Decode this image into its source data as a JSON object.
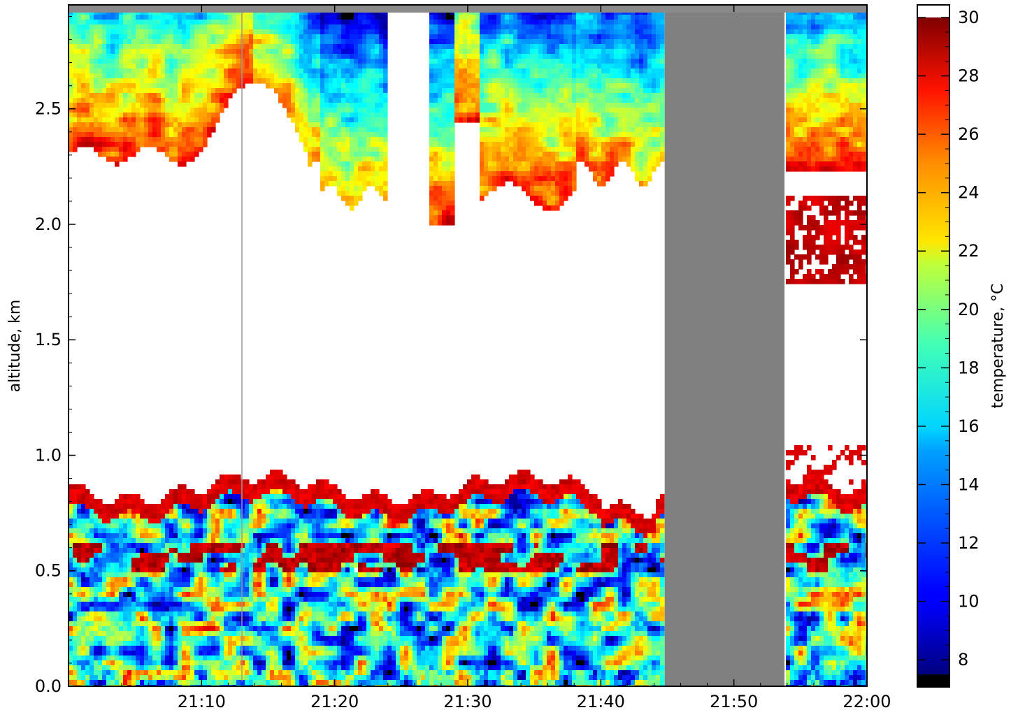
{
  "chart_data": {
    "type": "heatmap",
    "title": "",
    "xlabel": "",
    "ylabel": "altitude, km",
    "x_ticks": [
      "21:10",
      "21:20",
      "21:30",
      "21:40",
      "21:50",
      "22:00"
    ],
    "x_tick_minutes": [
      10,
      20,
      30,
      40,
      50,
      60
    ],
    "xlim_minutes_after_21_00": [
      0,
      60
    ],
    "y_ticks": [
      0.0,
      0.5,
      1.0,
      1.5,
      2.0,
      2.5
    ],
    "y_tick_labels": [
      "0.0",
      "0.5",
      "1.0",
      "1.5",
      "2.0",
      "2.5"
    ],
    "ylim": [
      0.0,
      2.95
    ],
    "no_data_color": "#808080",
    "over_range_color": "#ffffff",
    "under_range_color": "#000000",
    "no_data_periods_minutes": [
      [
        44.8,
        53.8
      ]
    ],
    "colorbar": {
      "label": "temperature, °C",
      "range": [
        7.5,
        30
      ],
      "ticks": [
        8,
        10,
        12,
        14,
        16,
        18,
        20,
        22,
        24,
        26,
        28,
        30
      ],
      "colormap": "jet"
    },
    "regions": [
      {
        "name": "low layer (near surface to ~0.8 km)",
        "altitude_km": [
          0.0,
          0.85
        ],
        "temperature_c": [
          9,
          28
        ],
        "note": "highly variable, mixed blue/green/yellow/red"
      },
      {
        "name": "warm band",
        "altitude_km": [
          0.7,
          0.9
        ],
        "temperature_c": [
          26,
          29
        ]
      },
      {
        "name": "over-range region",
        "altitude_km": [
          0.85,
          2.3
        ],
        "temperature_c": ">30"
      },
      {
        "name": "upper layer",
        "altitude_km": [
          2.3,
          2.95
        ],
        "temperature_c": [
          14,
          29
        ],
        "note": "red near base, cooling with altitude toward cyan/blue"
      }
    ]
  }
}
